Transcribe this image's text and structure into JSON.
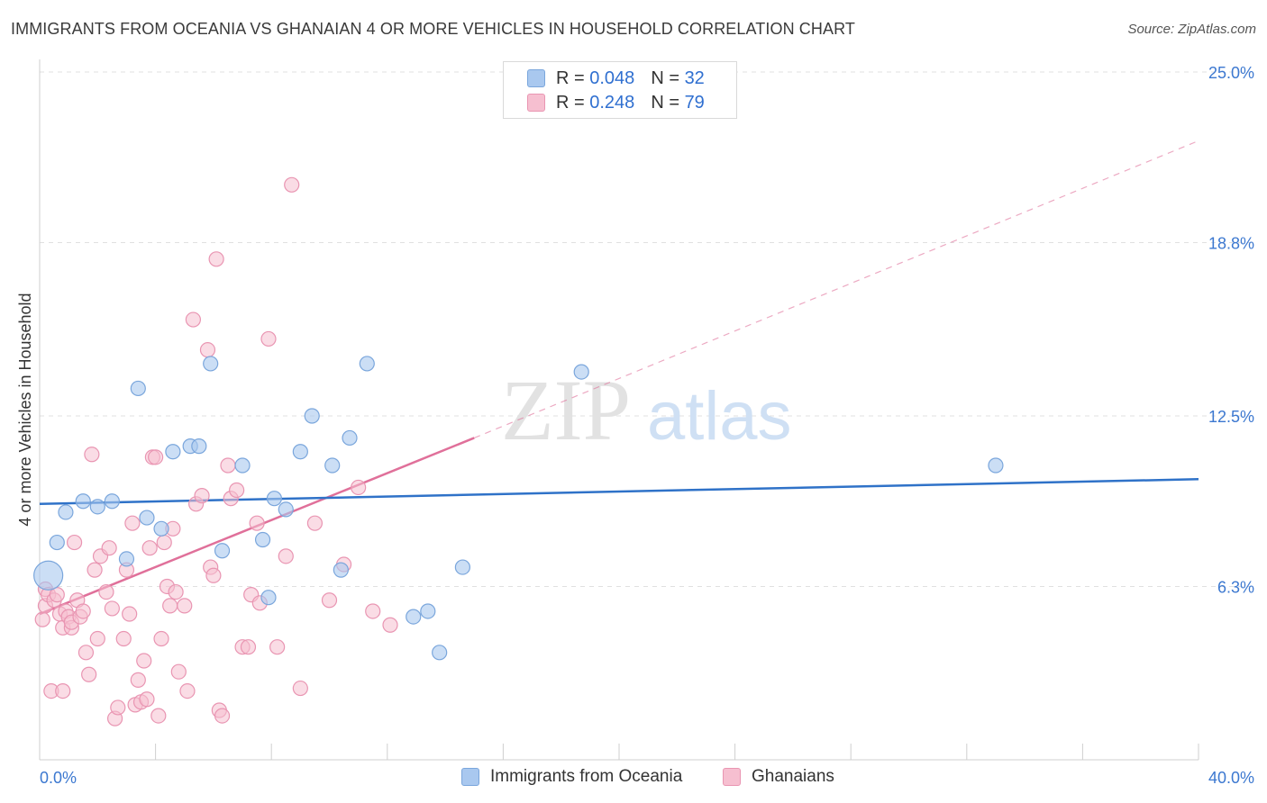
{
  "header": {
    "title": "IMMIGRANTS FROM OCEANIA VS GHANAIAN 4 OR MORE VEHICLES IN HOUSEHOLD CORRELATION CHART",
    "source": "Source: ZipAtlas.com"
  },
  "watermark": {
    "zip": "ZIP",
    "atlas": "atlas"
  },
  "legend": {
    "rows": [
      {
        "r_label": "R =",
        "r_value": "0.048",
        "n_label": "N =",
        "n_value": "32"
      },
      {
        "r_label": "R =",
        "r_value": "0.248",
        "n_label": "N =",
        "n_value": "79"
      }
    ]
  },
  "bottom_legend": {
    "items": [
      {
        "label": "Immigrants from Oceania"
      },
      {
        "label": "Ghanaians"
      }
    ]
  },
  "colors": {
    "blue_fill": "#a9c8ef",
    "blue_stroke": "#7aa6dc",
    "blue_line": "#2f72c8",
    "pink_fill": "#f6bfd0",
    "pink_stroke": "#e995b2",
    "pink_line": "#e0709a",
    "axis_text": "#3c78d0",
    "grid": "#e0e0e0"
  },
  "chart_data": {
    "type": "scatter",
    "title": "IMMIGRANTS FROM OCEANIA VS GHANAIAN 4 OR MORE VEHICLES IN HOUSEHOLD CORRELATION CHART",
    "xlabel": "",
    "ylabel": "4 or more Vehicles in Household",
    "xlim": [
      0,
      40
    ],
    "ylim": [
      0,
      25
    ],
    "x_tick_labels": [
      "0.0%",
      "40.0%"
    ],
    "y_ticks": [
      6.3,
      12.5,
      18.8,
      25.0
    ],
    "y_tick_labels": [
      "6.3%",
      "12.5%",
      "18.8%",
      "25.0%"
    ],
    "grid": "horizontal dashed",
    "legend_position": "top-center",
    "series": [
      {
        "name": "Immigrants from Oceania",
        "color": "#a9c8ef",
        "trend": {
          "x0": 0,
          "y0": 9.3,
          "x1": 40,
          "y1": 10.2,
          "style": "solid"
        },
        "points": [
          [
            0.3,
            6.7
          ],
          [
            0.6,
            7.9
          ],
          [
            0.9,
            9.0
          ],
          [
            1.5,
            9.4
          ],
          [
            2.0,
            9.2
          ],
          [
            2.5,
            9.4
          ],
          [
            3.0,
            7.3
          ],
          [
            3.4,
            13.5
          ],
          [
            3.7,
            8.8
          ],
          [
            4.2,
            8.4
          ],
          [
            4.6,
            11.2
          ],
          [
            5.2,
            11.4
          ],
          [
            5.5,
            11.4
          ],
          [
            5.9,
            14.4
          ],
          [
            6.3,
            7.6
          ],
          [
            7.0,
            10.7
          ],
          [
            7.7,
            8.0
          ],
          [
            7.9,
            5.9
          ],
          [
            8.1,
            9.5
          ],
          [
            8.5,
            9.1
          ],
          [
            9.0,
            11.2
          ],
          [
            9.4,
            12.5
          ],
          [
            10.1,
            10.7
          ],
          [
            10.4,
            6.9
          ],
          [
            10.7,
            11.7
          ],
          [
            11.3,
            14.4
          ],
          [
            12.9,
            5.2
          ],
          [
            13.4,
            5.4
          ],
          [
            13.8,
            3.9
          ],
          [
            14.6,
            7.0
          ],
          [
            18.7,
            14.1
          ],
          [
            33.0,
            10.7
          ]
        ]
      },
      {
        "name": "Ghanaians",
        "color": "#f6bfd0",
        "trend": {
          "x0": 0,
          "y0": 5.3,
          "x1": 15.0,
          "y1": 11.7,
          "style": "solid",
          "dashed_to": {
            "x": 40,
            "y": 22.5
          }
        },
        "points": [
          [
            0.1,
            5.1
          ],
          [
            0.2,
            6.2
          ],
          [
            0.2,
            5.6
          ],
          [
            0.3,
            6.0
          ],
          [
            0.4,
            2.5
          ],
          [
            0.5,
            5.8
          ],
          [
            0.6,
            6.0
          ],
          [
            0.7,
            5.3
          ],
          [
            0.8,
            4.8
          ],
          [
            0.9,
            5.4
          ],
          [
            1.0,
            5.2
          ],
          [
            1.1,
            4.8
          ],
          [
            1.1,
            5.0
          ],
          [
            1.2,
            7.9
          ],
          [
            1.3,
            5.8
          ],
          [
            1.4,
            5.2
          ],
          [
            1.5,
            5.4
          ],
          [
            1.6,
            3.9
          ],
          [
            1.7,
            3.1
          ],
          [
            1.8,
            11.1
          ],
          [
            1.9,
            6.9
          ],
          [
            2.0,
            4.4
          ],
          [
            2.1,
            7.4
          ],
          [
            2.3,
            6.1
          ],
          [
            2.4,
            7.7
          ],
          [
            2.5,
            5.5
          ],
          [
            2.6,
            1.5
          ],
          [
            2.7,
            1.9
          ],
          [
            2.9,
            4.4
          ],
          [
            3.0,
            6.9
          ],
          [
            3.1,
            5.3
          ],
          [
            3.2,
            8.6
          ],
          [
            3.3,
            2.0
          ],
          [
            3.4,
            2.9
          ],
          [
            3.5,
            2.1
          ],
          [
            3.6,
            3.6
          ],
          [
            3.7,
            2.2
          ],
          [
            3.8,
            7.7
          ],
          [
            3.9,
            11.0
          ],
          [
            4.0,
            11.0
          ],
          [
            4.1,
            1.6
          ],
          [
            4.2,
            4.4
          ],
          [
            4.3,
            7.9
          ],
          [
            4.4,
            6.3
          ],
          [
            4.5,
            5.6
          ],
          [
            4.6,
            8.4
          ],
          [
            4.7,
            6.1
          ],
          [
            4.8,
            3.2
          ],
          [
            5.0,
            5.6
          ],
          [
            5.1,
            2.5
          ],
          [
            5.3,
            16.0
          ],
          [
            5.4,
            9.3
          ],
          [
            5.6,
            9.6
          ],
          [
            5.8,
            14.9
          ],
          [
            5.9,
            7.0
          ],
          [
            6.0,
            6.7
          ],
          [
            6.1,
            18.2
          ],
          [
            6.2,
            1.8
          ],
          [
            6.3,
            1.6
          ],
          [
            6.5,
            10.7
          ],
          [
            6.6,
            9.5
          ],
          [
            6.8,
            9.8
          ],
          [
            7.0,
            4.1
          ],
          [
            7.2,
            4.1
          ],
          [
            7.3,
            6.0
          ],
          [
            7.5,
            8.6
          ],
          [
            7.6,
            5.7
          ],
          [
            7.9,
            15.3
          ],
          [
            8.2,
            4.1
          ],
          [
            8.5,
            7.4
          ],
          [
            8.7,
            20.9
          ],
          [
            9.0,
            2.6
          ],
          [
            9.5,
            8.6
          ],
          [
            10.0,
            5.8
          ],
          [
            10.5,
            7.1
          ],
          [
            11.0,
            9.9
          ],
          [
            11.5,
            5.4
          ],
          [
            12.1,
            4.9
          ],
          [
            0.8,
            2.5
          ]
        ]
      }
    ]
  }
}
